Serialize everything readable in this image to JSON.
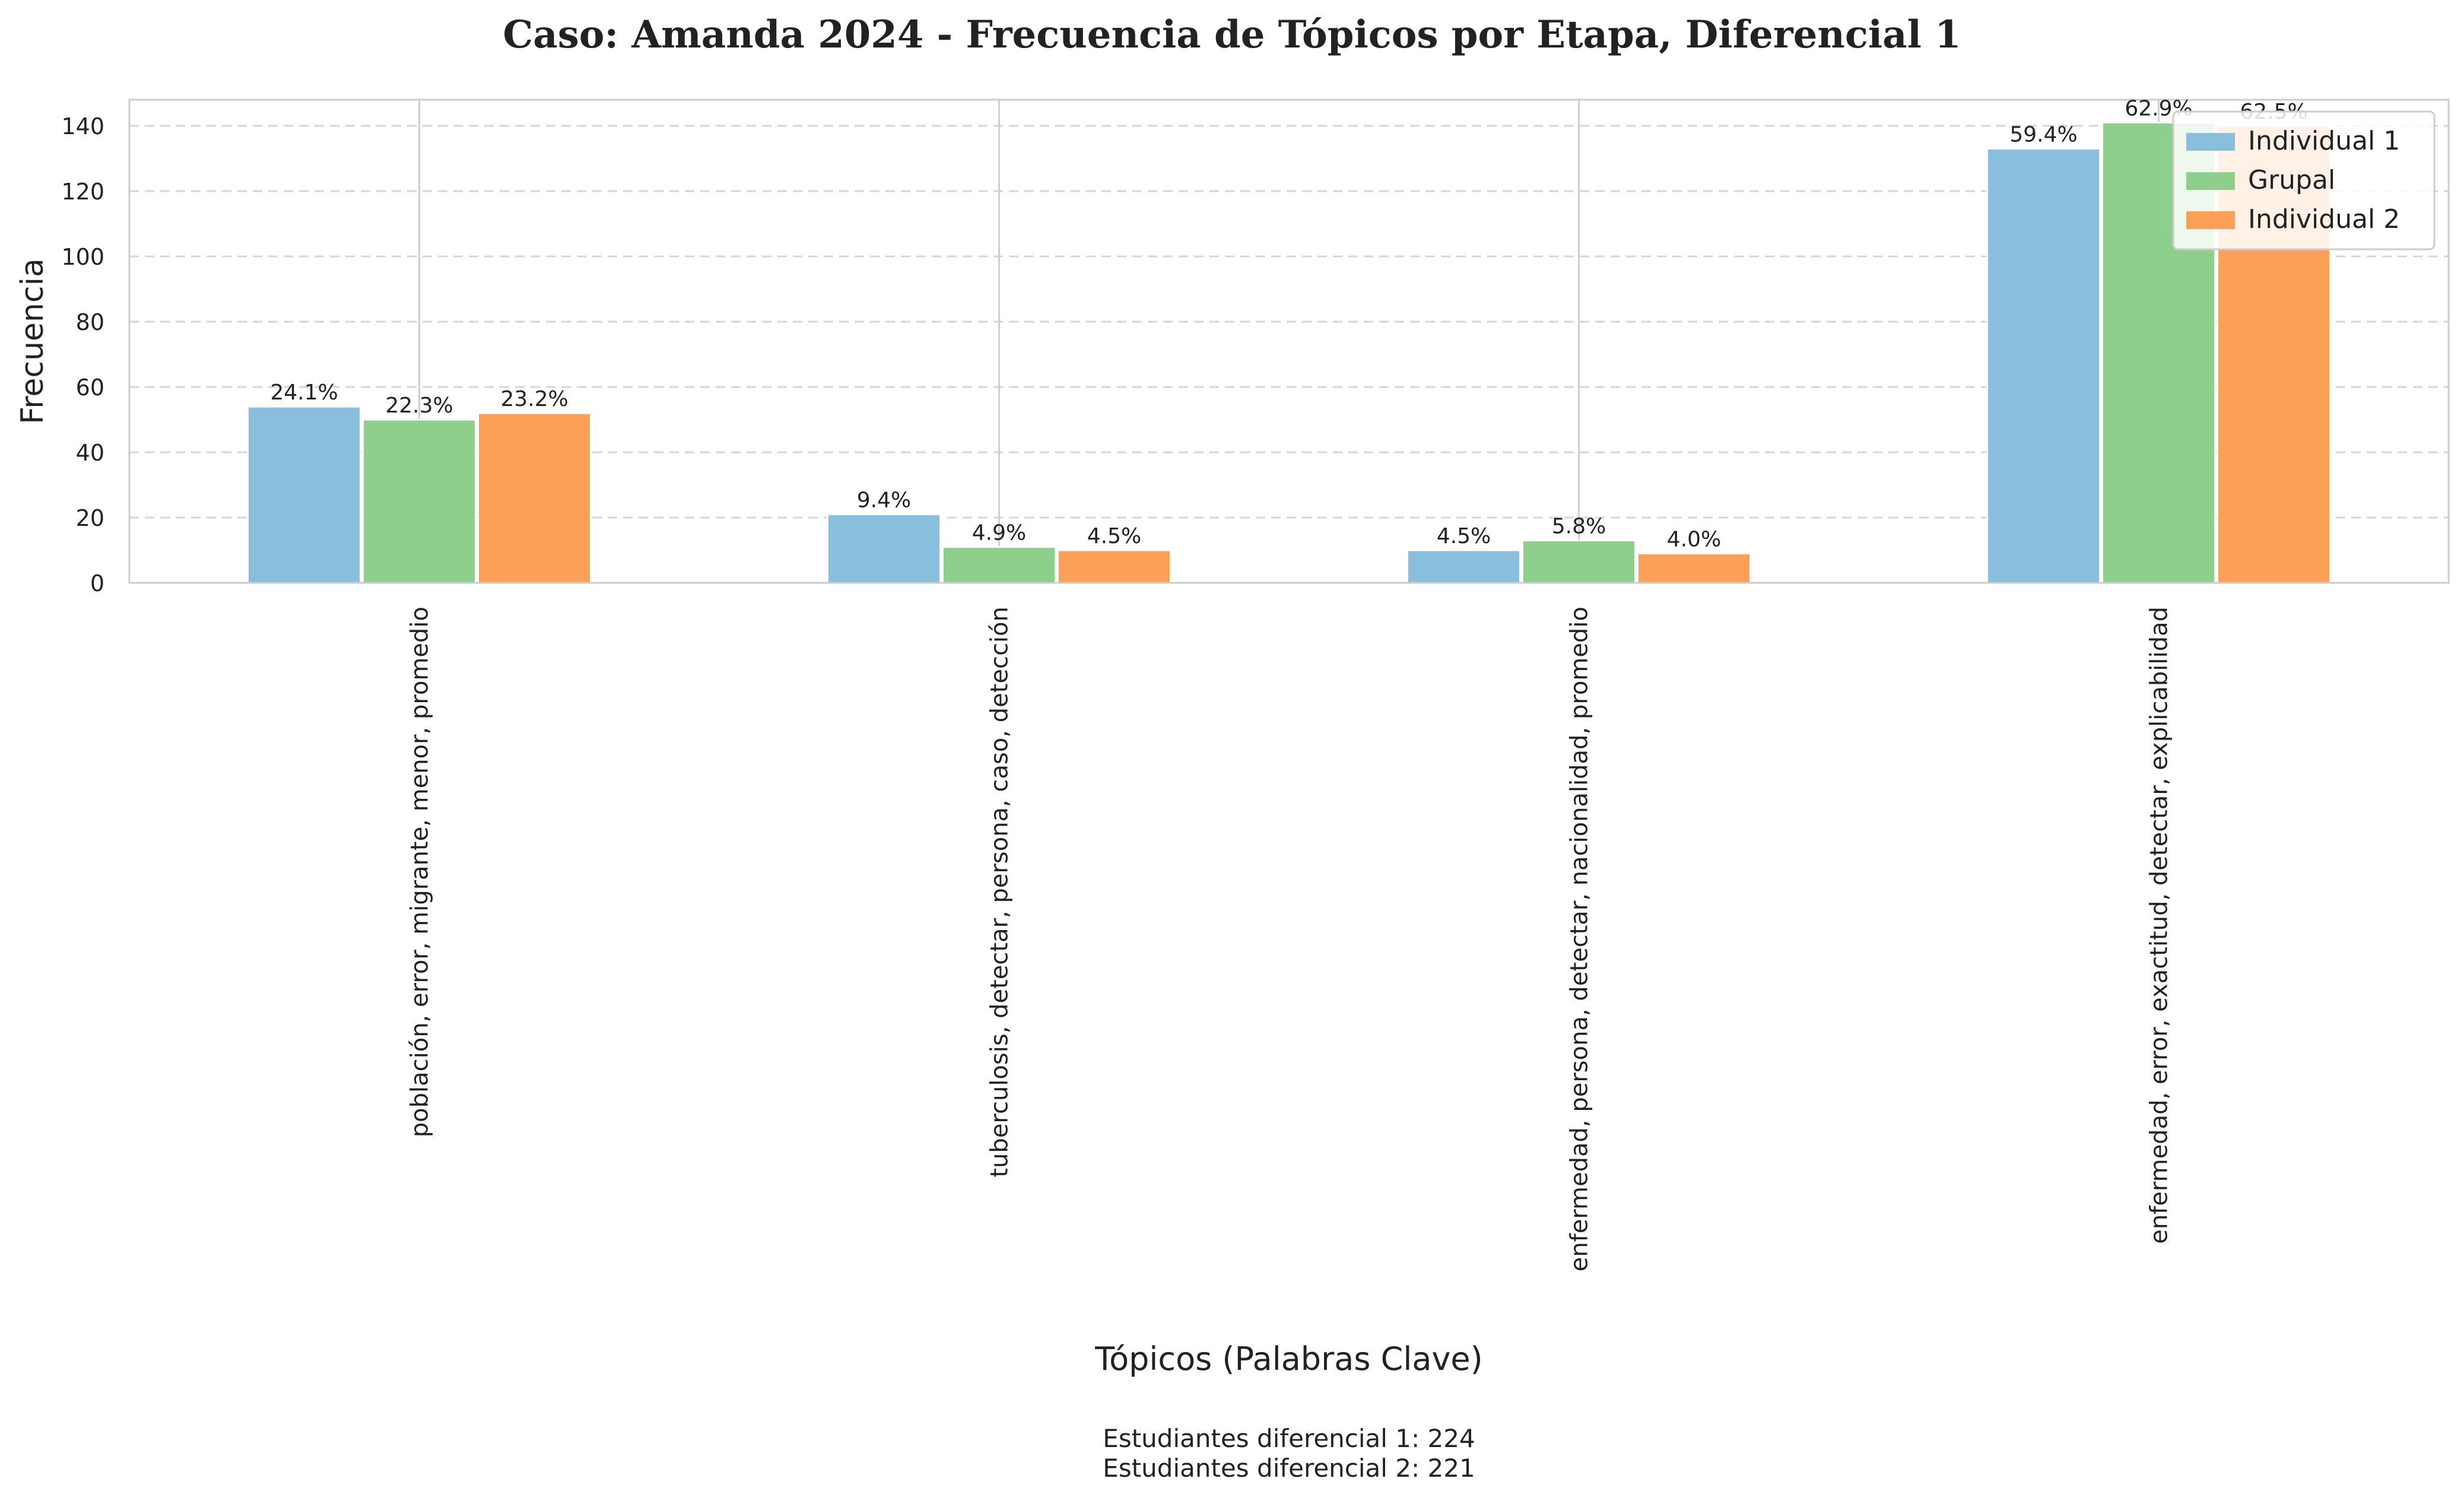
{
  "chart_data": {
    "type": "bar",
    "title": "Caso: Amanda 2024 - Frecuencia de Tópicos por Etapa, Diferencial 1",
    "xlabel": "Tópicos (Palabras Clave)",
    "ylabel": "Frecuencia",
    "ylim": [
      0,
      148
    ],
    "yticks": [
      0,
      20,
      40,
      60,
      80,
      100,
      120,
      140
    ],
    "grid": true,
    "legend_position": "top-right",
    "categories": [
      "población, error, migrante, menor, promedio",
      "tuberculosis, detectar, persona, caso, detección",
      "enfermedad, persona, detectar, nacionalidad, promedio",
      "enfermedad, error, exactitud, detectar, explicabilidad"
    ],
    "series": [
      {
        "name": "Individual 1",
        "color": "#89bedc",
        "values": [
          54,
          21,
          10,
          133
        ],
        "labels": [
          "24.1%",
          "9.4%",
          "4.5%",
          "59.4%"
        ]
      },
      {
        "name": "Grupal",
        "color": "#8ed08b",
        "values": [
          50,
          11,
          13,
          141
        ],
        "labels": [
          "22.3%",
          "4.9%",
          "5.8%",
          "62.9%"
        ]
      },
      {
        "name": "Individual 2",
        "color": "#fda057",
        "values": [
          52,
          10,
          9,
          140
        ],
        "labels": [
          "23.2%",
          "4.5%",
          "4.0%",
          "62.5%"
        ]
      }
    ],
    "footer": [
      "Estudiantes diferencial 1: 224",
      "Estudiantes diferencial 2: 221"
    ]
  }
}
